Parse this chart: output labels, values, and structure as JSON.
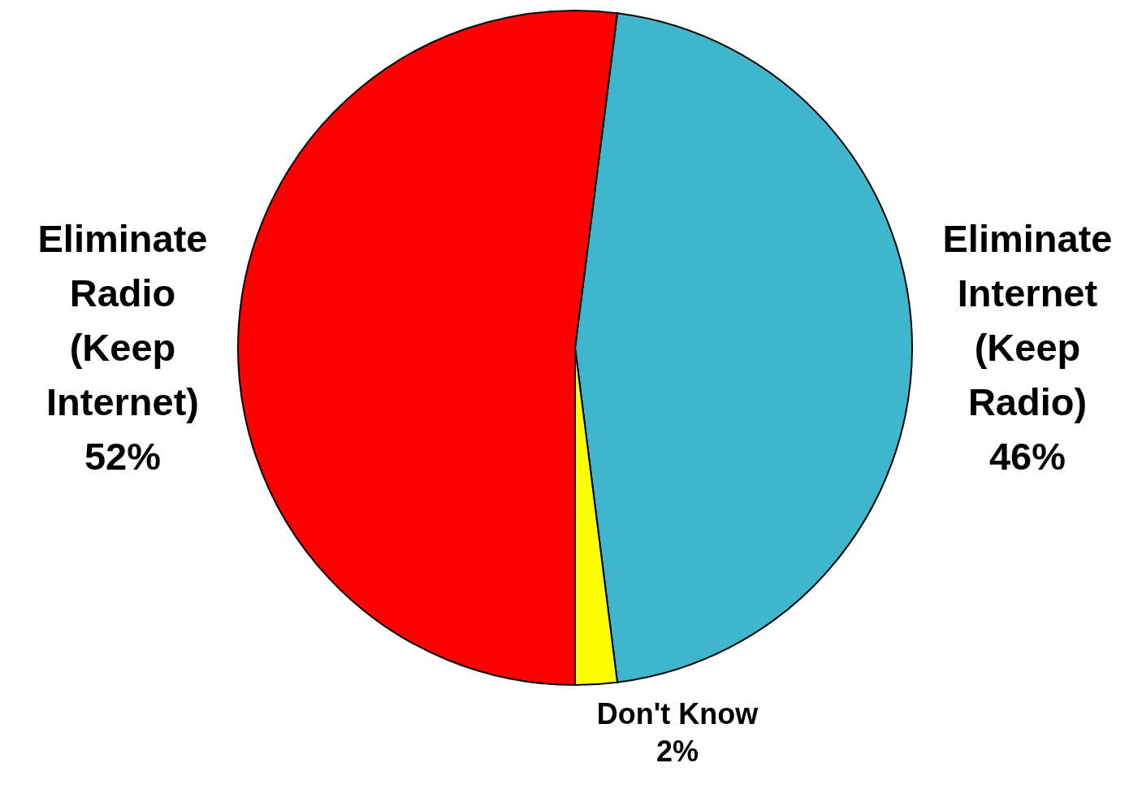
{
  "chart_data": {
    "type": "pie",
    "categories": [
      "Eliminate Internet (Keep Radio)",
      "Don't Know",
      "Eliminate Radio (Keep Internet)"
    ],
    "values": [
      46,
      2,
      52
    ],
    "colors": [
      "#40b6cc",
      "#ffff00",
      "#ff0000"
    ],
    "value_labels": [
      "46%",
      "2%",
      "52%"
    ]
  }
}
